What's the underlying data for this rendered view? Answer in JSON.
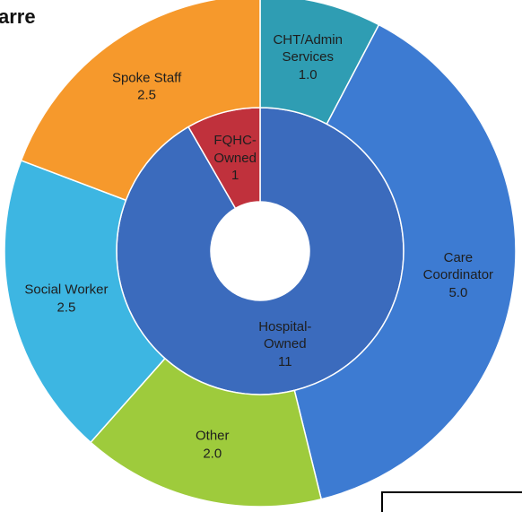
{
  "chart_data": {
    "type": "donut",
    "title": "arre",
    "rings": [
      {
        "categories": [
          "Hospital-Owned",
          "FQHC-Owned"
        ],
        "values": [
          11,
          1
        ],
        "colors": [
          "#3b6bbd",
          "#c0313c"
        ]
      },
      {
        "categories": [
          "CHT/Admin Services",
          "Care Coordinator",
          "Other",
          "Social Worker",
          "Spoke Staff"
        ],
        "values": [
          1,
          5,
          2,
          2.5,
          2.5
        ],
        "value_labels": [
          "1.0",
          "5.0",
          "2.0",
          "2.5",
          "2.5"
        ],
        "colors": [
          "#2f9db3",
          "#3d7bd2",
          "#9ecb3c",
          "#3db6e2",
          "#f6992c"
        ]
      }
    ]
  }
}
